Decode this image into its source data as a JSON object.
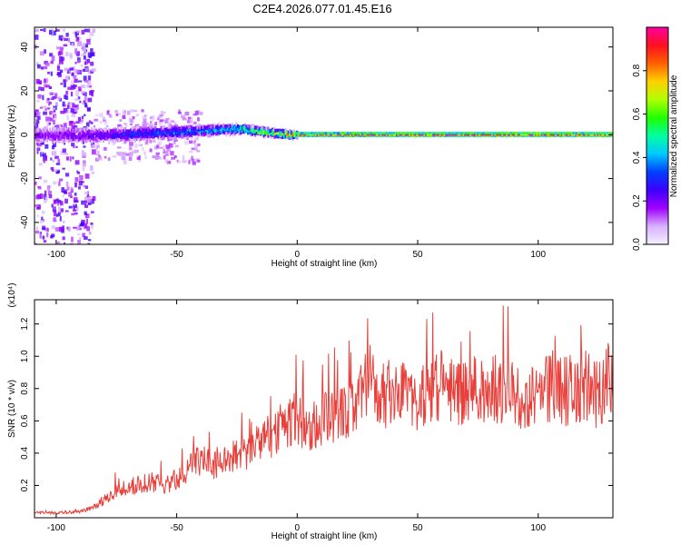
{
  "title": "C2E4.2026.077.01.45.E16",
  "chart_data": [
    {
      "type": "heatmap",
      "name": "spectrogram",
      "xlabel": "Height of straight line (km)",
      "ylabel": "Frequency (Hz)",
      "xlim": [
        -109,
        131
      ],
      "ylim": [
        -50,
        49
      ],
      "xticks": [
        -100,
        -50,
        0,
        50,
        100
      ],
      "yticks": [
        -40,
        -20,
        0,
        20,
        40
      ],
      "description_points": [
        {
          "x": -100,
          "freq": 0,
          "amp": 0.2
        },
        {
          "x": -80,
          "freq": 0,
          "amp": 0.25
        },
        {
          "x": -60,
          "freq": 1,
          "amp": 0.35
        },
        {
          "x": -40,
          "freq": 2,
          "amp": 0.4
        },
        {
          "x": -25,
          "freq": 3,
          "amp": 0.5
        },
        {
          "x": -10,
          "freq": 1,
          "amp": 0.7
        },
        {
          "x": 0,
          "freq": 0,
          "amp": 0.85
        },
        {
          "x": 50,
          "freq": 0,
          "amp": 0.95
        },
        {
          "x": 130,
          "freq": 0,
          "amp": 0.95
        }
      ],
      "colorbar": {
        "label": "Normalized spectral amplitude",
        "range": [
          0.0,
          1.0
        ],
        "ticks": [
          "0.0",
          "0.2",
          "0.4",
          "0.6",
          "0.8"
        ],
        "tick_values": [
          0.0,
          0.2,
          0.4,
          0.6,
          0.8
        ],
        "colors": [
          "#f2f0ff",
          "#d9b0ff",
          "#a000ff",
          "#3c00ff",
          "#0040ff",
          "#00c8ff",
          "#00ffa0",
          "#20ff00",
          "#b0ff00",
          "#ffd000",
          "#ff6000",
          "#ff1020",
          "#ff00a0"
        ]
      }
    },
    {
      "type": "line",
      "name": "snr",
      "xlabel": "Height of straight line (km)",
      "ylabel": "SNR (10 * v/v)",
      "scale_label": "(x10⁴)",
      "xlim": [
        -109,
        131
      ],
      "ylim": [
        0,
        1.35
      ],
      "xticks": [
        -100,
        -50,
        0,
        50,
        100
      ],
      "yticks": [
        0.2,
        0.4,
        0.6,
        0.8,
        1.0,
        1.2
      ],
      "ytick_labels": [
        "0.2",
        "0.4",
        "0.6",
        "0.8",
        "1.0",
        "1.2"
      ],
      "color": "#e8413c",
      "points": [
        [
          -109,
          0.03
        ],
        [
          -100,
          0.03
        ],
        [
          -90,
          0.04
        ],
        [
          -85,
          0.06
        ],
        [
          -80,
          0.11
        ],
        [
          -75,
          0.17
        ],
        [
          -70,
          0.19
        ],
        [
          -65,
          0.21
        ],
        [
          -60,
          0.22
        ],
        [
          -55,
          0.2
        ],
        [
          -50,
          0.24
        ],
        [
          -45,
          0.3
        ],
        [
          -40,
          0.36
        ],
        [
          -35,
          0.33
        ],
        [
          -30,
          0.37
        ],
        [
          -25,
          0.38
        ],
        [
          -20,
          0.42
        ],
        [
          -15,
          0.47
        ],
        [
          -10,
          0.52
        ],
        [
          -5,
          0.58
        ],
        [
          0,
          0.62
        ],
        [
          5,
          0.55
        ],
        [
          10,
          0.6
        ],
        [
          15,
          0.63
        ],
        [
          20,
          0.67
        ],
        [
          25,
          0.72
        ],
        [
          30,
          0.88
        ],
        [
          35,
          0.75
        ],
        [
          40,
          0.78
        ],
        [
          45,
          0.82
        ],
        [
          50,
          0.7
        ],
        [
          55,
          0.8
        ],
        [
          60,
          0.8
        ],
        [
          65,
          0.78
        ],
        [
          70,
          0.75
        ],
        [
          75,
          0.8
        ],
        [
          80,
          0.78
        ],
        [
          85,
          0.8
        ],
        [
          90,
          0.75
        ],
        [
          95,
          0.72
        ],
        [
          100,
          0.75
        ],
        [
          105,
          0.8
        ],
        [
          110,
          0.78
        ],
        [
          115,
          0.8
        ],
        [
          120,
          0.82
        ],
        [
          125,
          0.75
        ],
        [
          131,
          0.9
        ]
      ]
    }
  ]
}
